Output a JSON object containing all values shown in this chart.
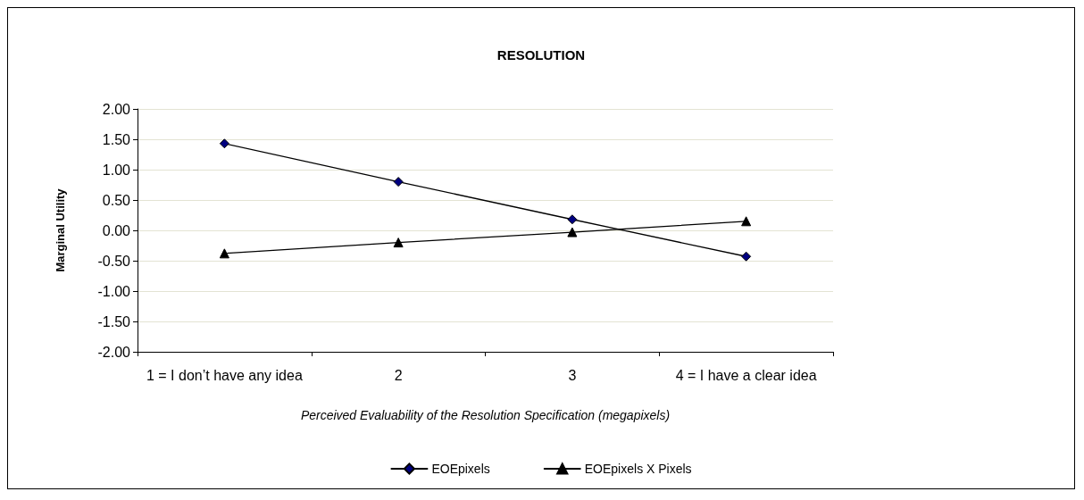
{
  "chart_data": {
    "type": "line",
    "title": "RESOLUTION",
    "xlabel": "Perceived Evaluability of the Resolution Specification (megapixels)",
    "ylabel": "Marginal Utility",
    "categories": [
      "1 = I don’t have any idea",
      "2",
      "3",
      "4 = I have a clear idea"
    ],
    "series": [
      {
        "name": "EOEpixels",
        "color": "#000080",
        "marker": "diamond",
        "values": [
          1.43,
          0.8,
          0.18,
          -0.43
        ]
      },
      {
        "name": "EOEpixels X Pixels",
        "color": "#000000",
        "marker": "triangle",
        "values": [
          -0.38,
          -0.2,
          -0.03,
          0.15
        ]
      }
    ],
    "ylim": [
      -2,
      2
    ],
    "yticks": [
      {
        "value": -2,
        "label": "-2.00"
      },
      {
        "value": -1.5,
        "label": "-1.50"
      },
      {
        "value": -1,
        "label": "-1.00"
      },
      {
        "value": -0.5,
        "label": "-0.50"
      },
      {
        "value": 0,
        "label": "0.00"
      },
      {
        "value": 0.5,
        "label": "0.50"
      },
      {
        "value": 1,
        "label": "1.00"
      },
      {
        "value": 1.5,
        "label": "1.50"
      },
      {
        "value": 2,
        "label": "2.00"
      }
    ],
    "grid": "y",
    "legend": "bottom",
    "line_style": "solid"
  }
}
